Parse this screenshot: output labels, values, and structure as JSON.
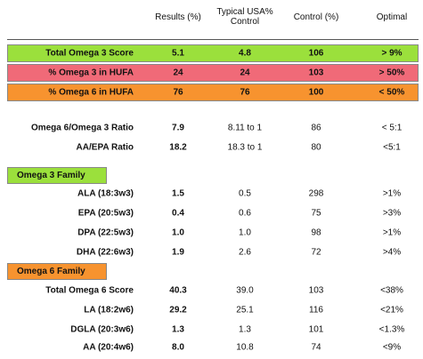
{
  "header": {
    "columns": [
      "Results (%)",
      "Typical USA% Control",
      "Control (%)",
      "Optimal"
    ]
  },
  "table": {
    "rows": [
      [
        "Total Omega 3 Score",
        "5.1",
        "4.8",
        "106",
        "> 9%"
      ],
      [
        "% Omega 3 in HUFA",
        "24",
        "24",
        "103",
        "> 50%"
      ],
      [
        "% Omega 6 in HUFA",
        "76",
        "76",
        "100",
        "< 50%"
      ],
      [
        "Omega 6/Omega 3 Ratio",
        "7.9",
        "8.11 to 1",
        "86",
        "< 5:1"
      ],
      [
        "AA/EPA Ratio",
        "18.2",
        "18.3 to 1",
        "80",
        "<5:1"
      ],
      [
        "ALA (18:3w3)",
        "1.5",
        "0.5",
        "298",
        ">1%"
      ],
      [
        "EPA (20:5w3)",
        "0.4",
        "0.6",
        "75",
        ">3%"
      ],
      [
        "DPA (22:5w3)",
        "1.0",
        "1.0",
        "98",
        ">1%"
      ],
      [
        "DHA (22:6w3)",
        "1.9",
        "2.6",
        "72",
        ">4%"
      ],
      [
        "Total Omega 6 Score",
        "40.3",
        "39.0",
        "103",
        "<38%"
      ],
      [
        "LA (18:2w6)",
        "29.2",
        "25.1",
        "116",
        "<21%"
      ],
      [
        "DGLA (20:3w6)",
        "1.3",
        "1.3",
        "101",
        "<1.3%"
      ],
      [
        "AA (20:4w6)",
        "8.0",
        "10.8",
        "74",
        "<9%"
      ]
    ]
  },
  "sections": [
    "Omega 3 Family",
    "Omega 6 Family"
  ]
}
